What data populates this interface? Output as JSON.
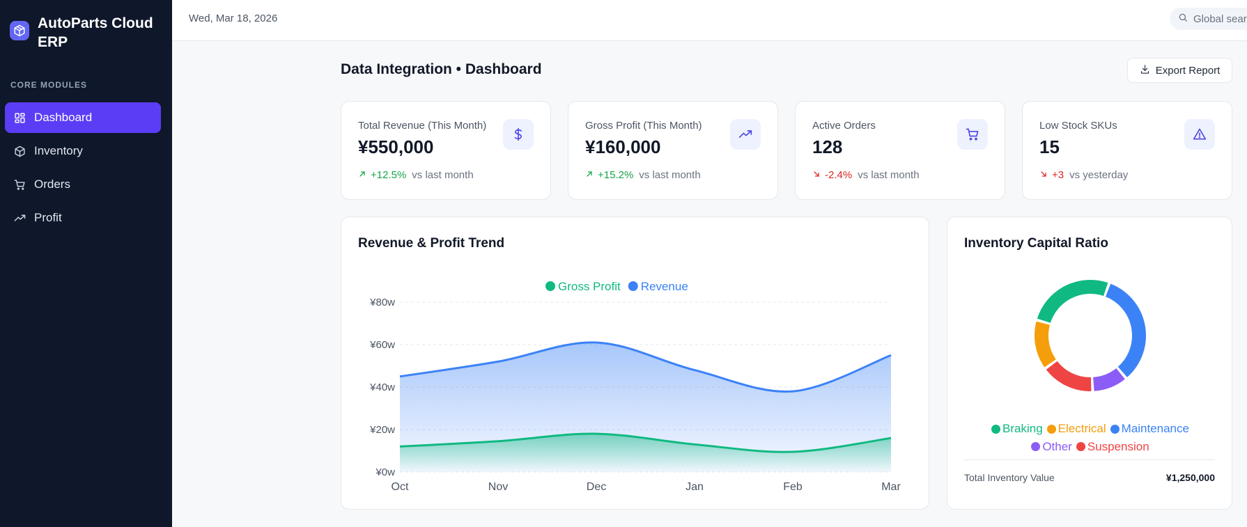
{
  "sidebar": {
    "brand": "AutoParts Cloud ERP",
    "section_label": "CORE MODULES",
    "items": [
      {
        "label": "Dashboard",
        "icon": "grid-icon",
        "active": true
      },
      {
        "label": "Inventory",
        "icon": "box-icon",
        "active": false
      },
      {
        "label": "Orders",
        "icon": "cart-icon",
        "active": false
      },
      {
        "label": "Profit",
        "icon": "trending-up-icon",
        "active": false
      }
    ]
  },
  "topbar": {
    "date": "Wed, Mar 18, 2026",
    "search_placeholder": "Global search"
  },
  "page": {
    "title": "Data Integration • Dashboard",
    "export_label": "Export Report"
  },
  "stats": [
    {
      "label": "Total Revenue (This Month)",
      "value": "¥550,000",
      "change": "+12.5%",
      "direction": "up",
      "note": "vs last month",
      "icon": "dollar-icon"
    },
    {
      "label": "Gross Profit (This Month)",
      "value": "¥160,000",
      "change": "+15.2%",
      "direction": "up",
      "note": "vs last month",
      "icon": "trending-up-icon"
    },
    {
      "label": "Active Orders",
      "value": "128",
      "change": "-2.4%",
      "direction": "down",
      "note": "vs last month",
      "icon": "cart-icon"
    },
    {
      "label": "Low Stock SKUs",
      "value": "15",
      "change": "+3",
      "direction": "down",
      "note": "vs yesterday",
      "icon": "alert-triangle-icon"
    }
  ],
  "colors": {
    "accent": "#5b3df5",
    "revenue": "#3b82f6",
    "profit": "#10b981",
    "up": "#16a34a",
    "down": "#dc2626"
  },
  "chart_data": [
    {
      "type": "area",
      "title": "Revenue & Profit Trend",
      "categories": [
        "Oct",
        "Nov",
        "Dec",
        "Jan",
        "Feb",
        "Mar"
      ],
      "y_ticks": [
        "¥0w",
        "¥20w",
        "¥40w",
        "¥60w",
        "¥80w"
      ],
      "ylim": [
        0,
        80
      ],
      "grid": true,
      "legend": "top-center",
      "series": [
        {
          "name": "Gross Profit",
          "color": "#10b981",
          "values": [
            12,
            14.5,
            18,
            13,
            9.5,
            16
          ]
        },
        {
          "name": "Revenue",
          "color": "#3b82f6",
          "values": [
            45,
            52,
            61,
            48,
            38,
            55
          ]
        }
      ]
    },
    {
      "type": "pie",
      "title": "Inventory Capital Ratio",
      "legend": "bottom",
      "slices": [
        {
          "name": "Braking",
          "value": 25,
          "color": "#10b981"
        },
        {
          "name": "Electrical",
          "value": 14,
          "color": "#f59e0b"
        },
        {
          "name": "Maintenance",
          "value": 32,
          "color": "#3b82f6"
        },
        {
          "name": "Other",
          "value": 10,
          "color": "#8b5cf6"
        },
        {
          "name": "Suspension",
          "value": 15,
          "color": "#ef4444"
        }
      ],
      "total_label": "Total Inventory Value",
      "total_value": "¥1,250,000"
    }
  ]
}
